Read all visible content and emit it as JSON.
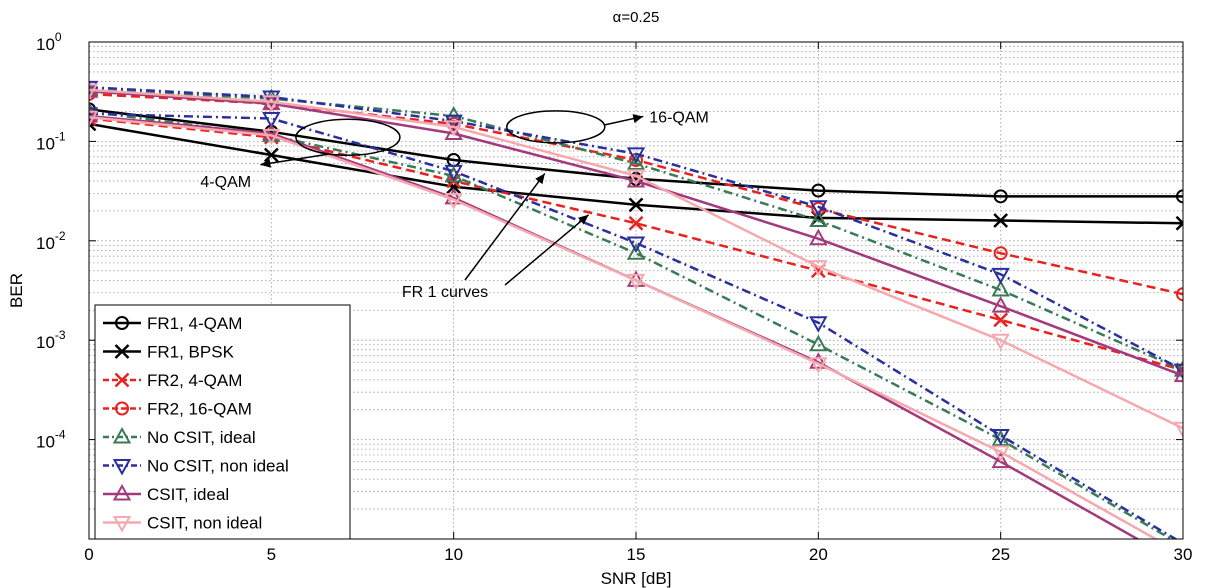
{
  "chart_data": {
    "type": "line",
    "title": "α=0.25",
    "xlabel": "SNR [dB]",
    "ylabel": "BER",
    "y_scale": "log",
    "xlim": [
      0,
      30
    ],
    "ylim": [
      1e-05,
      1
    ],
    "grid": true,
    "legend_position": "bottom-left",
    "x_ticks": [
      "0",
      "5",
      "10",
      "15",
      "20",
      "25",
      "30"
    ],
    "y_ticks": [
      {
        "base": "10",
        "exp": "0"
      },
      {
        "base": "10",
        "exp": "-1"
      },
      {
        "base": "10",
        "exp": "-2"
      },
      {
        "base": "10",
        "exp": "-3"
      },
      {
        "base": "10",
        "exp": "-4"
      }
    ],
    "series": [
      {
        "name": "FR1, 4-QAM",
        "color": "#000000",
        "dash": "solid",
        "marker": "circle",
        "points": [
          [
            0,
            0.21
          ],
          [
            5,
            0.125
          ],
          [
            10,
            0.065
          ],
          [
            15,
            0.042
          ],
          [
            20,
            0.032
          ],
          [
            25,
            0.028
          ],
          [
            30,
            0.028
          ]
        ]
      },
      {
        "name": "FR1, BPSK",
        "color": "#000000",
        "dash": "solid",
        "marker": "x",
        "points": [
          [
            0,
            0.15
          ],
          [
            5,
            0.073
          ],
          [
            10,
            0.035
          ],
          [
            15,
            0.023
          ],
          [
            20,
            0.017
          ],
          [
            25,
            0.016
          ],
          [
            30,
            0.015
          ]
        ]
      },
      {
        "name": "FR2, 4-QAM",
        "color": "#e8231f",
        "dash": "dashed",
        "marker": "x",
        "points": [
          [
            0,
            0.17
          ],
          [
            5,
            0.11
          ],
          [
            10,
            0.04
          ],
          [
            15,
            0.015
          ],
          [
            20,
            0.005
          ],
          [
            25,
            0.0016
          ],
          [
            30,
            0.0005
          ]
        ]
      },
      {
        "name": "FR2, 16-QAM",
        "color": "#e8231f",
        "dash": "dashed",
        "marker": "circle",
        "points": [
          [
            0,
            0.3
          ],
          [
            5,
            0.24
          ],
          [
            10,
            0.15
          ],
          [
            15,
            0.065
          ],
          [
            20,
            0.021
          ],
          [
            25,
            0.0075
          ],
          [
            30,
            0.0029
          ]
        ]
      },
      {
        "name": "No CSIT, ideal",
        "color": "#3a7b57",
        "dash": "dashdot",
        "marker": "triangle-up",
        "points": [
          [
            0,
            0.33
          ],
          [
            5,
            0.27
          ],
          [
            10,
            0.18
          ],
          [
            15,
            0.06
          ],
          [
            20,
            0.016
          ],
          [
            25,
            0.0032
          ],
          [
            30,
            0.0005
          ]
        ]
      },
      {
        "name": "No CSIT, ideal",
        "color": "#3a7b57",
        "dash": "dashdot",
        "marker": "triangle-up",
        "points": [
          [
            0,
            0.2
          ],
          [
            5,
            0.115
          ],
          [
            10,
            0.045
          ],
          [
            15,
            0.0075
          ],
          [
            20,
            0.0009
          ],
          [
            25,
            0.0001
          ],
          [
            30,
            8.5e-06
          ]
        ]
      },
      {
        "name": "No CSIT, non ideal",
        "color": "#2a2f9e",
        "dash": "dashdot",
        "marker": "triangle-down",
        "points": [
          [
            0,
            0.35
          ],
          [
            5,
            0.28
          ],
          [
            10,
            0.16
          ],
          [
            15,
            0.075
          ],
          [
            20,
            0.022
          ],
          [
            25,
            0.0046
          ],
          [
            30,
            0.0005
          ]
        ]
      },
      {
        "name": "No CSIT, non ideal",
        "color": "#2a2f9e",
        "dash": "dashdot",
        "marker": "triangle-down",
        "points": [
          [
            0,
            0.19
          ],
          [
            5,
            0.17
          ],
          [
            10,
            0.05
          ],
          [
            15,
            0.0095
          ],
          [
            20,
            0.0015
          ],
          [
            25,
            0.00011
          ],
          [
            30,
            9e-06
          ]
        ]
      },
      {
        "name": "CSIT, ideal",
        "color": "#a33a7c",
        "dash": "solid",
        "marker": "triangle-up",
        "points": [
          [
            0,
            0.32
          ],
          [
            5,
            0.24
          ],
          [
            10,
            0.12
          ],
          [
            15,
            0.04
          ],
          [
            20,
            0.0105
          ],
          [
            25,
            0.0022
          ],
          [
            30,
            0.00044
          ]
        ]
      },
      {
        "name": "CSIT, ideal",
        "color": "#a33a7c",
        "dash": "solid",
        "marker": "triangle-up",
        "points": [
          [
            0,
            0.18
          ],
          [
            5,
            0.12
          ],
          [
            10,
            0.027
          ],
          [
            15,
            0.004
          ],
          [
            20,
            0.0006
          ],
          [
            25,
            6e-05
          ],
          [
            30,
            5.5e-06
          ]
        ]
      },
      {
        "name": "CSIT, non ideal",
        "color": "#f5a9ae",
        "dash": "solid",
        "marker": "triangle-down",
        "points": [
          [
            0,
            0.33
          ],
          [
            5,
            0.25
          ],
          [
            10,
            0.14
          ],
          [
            15,
            0.045
          ],
          [
            20,
            0.0055
          ],
          [
            25,
            0.001
          ],
          [
            30,
            0.00013
          ]
        ]
      },
      {
        "name": "CSIT, non ideal",
        "color": "#f5a9ae",
        "dash": "solid",
        "marker": "triangle-down",
        "points": [
          [
            0,
            0.175
          ],
          [
            5,
            0.115
          ],
          [
            10,
            0.026
          ],
          [
            15,
            0.004
          ],
          [
            20,
            0.00058
          ],
          [
            25,
            7.5e-05
          ],
          [
            30,
            7e-06
          ]
        ]
      }
    ],
    "legend": [
      {
        "label": "FR1, 4-QAM",
        "series": 0
      },
      {
        "label": "FR1, BPSK",
        "series": 1
      },
      {
        "label": "FR2, 4-QAM",
        "series": 2
      },
      {
        "label": "FR2, 16-QAM",
        "series": 3
      },
      {
        "label": "No CSIT, ideal",
        "series": 4
      },
      {
        "label": "No CSIT, non ideal",
        "series": 6
      },
      {
        "label": "CSIT, ideal",
        "series": 8
      },
      {
        "label": "CSIT, non ideal",
        "series": 10
      }
    ],
    "annotations": [
      {
        "text": "16-QAM",
        "ellipse_center": [
          12.8,
          0.14
        ],
        "arrow_to": [
          15.2,
          0.135
        ]
      },
      {
        "text": "4-QAM",
        "ellipse_center": [
          7.1,
          0.11
        ],
        "arrow_to": [
          4.7,
          0.07
        ]
      },
      {
        "text": "FR 1 curves",
        "arrow_to": [
          [
            12.5,
            0.06
          ],
          [
            13.7,
            0.022
          ]
        ]
      }
    ]
  }
}
